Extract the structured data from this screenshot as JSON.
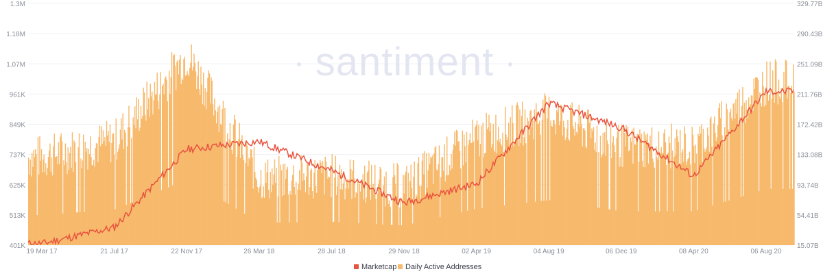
{
  "brand": {
    "watermark": "santiment",
    "bar_color": "#f7b96b",
    "line_color": "#e8533f",
    "grid_color": "#eef0f5"
  },
  "chart_data": {
    "type": "bar",
    "grid": true,
    "legend_position": "bottom-center",
    "left_axis": {
      "ticks": [
        "401K",
        "513K",
        "625K",
        "737K",
        "849K",
        "961K",
        "1.07M",
        "1.18M",
        "1.3M"
      ],
      "range": [
        401000,
        1300000
      ]
    },
    "right_axis": {
      "ticks": [
        "15.07B",
        "54.41B",
        "93.74B",
        "133.08B",
        "172.42B",
        "211.76B",
        "251.09B",
        "290.43B",
        "329.77B"
      ],
      "range": [
        15.07,
        329.77
      ]
    },
    "x_axis": {
      "ticks": [
        "19 Mar 17",
        "21 Jul 17",
        "22 Nov 17",
        "26 Mar 18",
        "28 Jul 18",
        "29 Nov 18",
        "02 Apr 19",
        "04 Aug 19",
        "06 Dec 19",
        "08 Apr 20",
        "06 Aug 20"
      ]
    },
    "series": [
      {
        "name": "Marketcap",
        "axis": "right",
        "kind": "line",
        "x": [
          "19 Mar 17",
          "21 Jul 17",
          "22 Nov 17",
          "26 Mar 18",
          "28 Jul 18",
          "29 Nov 18",
          "02 Apr 19",
          "04 Aug 19",
          "06 Dec 19",
          "08 Apr 20",
          "06 Aug 20"
        ],
        "values": [
          17,
          38,
          140,
          150,
          112,
          70,
          95,
          200,
          168,
          105,
          215
        ]
      },
      {
        "name": "Daily Active Addresses",
        "axis": "left",
        "kind": "bar",
        "x": [
          "19 Mar 17",
          "21 Jul 17",
          "22 Nov 17",
          "26 Mar 18",
          "28 Jul 18",
          "29 Nov 18",
          "02 Apr 19",
          "04 Aug 19",
          "06 Dec 19",
          "08 Apr 20",
          "06 Aug 20"
        ],
        "values": [
          720000,
          780000,
          1100000,
          640000,
          650000,
          610000,
          790000,
          880000,
          760000,
          760000,
          1000000
        ]
      }
    ]
  }
}
